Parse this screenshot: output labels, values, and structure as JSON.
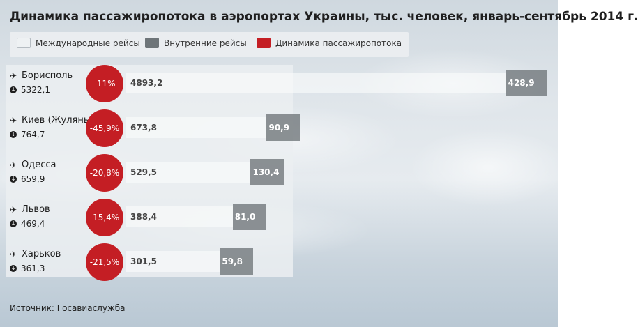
{
  "title": "Динамика пассажиропотока в аэропортах Украины, тыс. человек, январь-сентябрь 2014 г.",
  "legend": {
    "international": "Международные рейсы",
    "domestic": "Внутренние рейсы",
    "dynamics": "Динамика пассажиропотока"
  },
  "colors": {
    "international": "#eef1f3",
    "domestic": "#6e7579",
    "dynamics": "#c41e24"
  },
  "icons": {
    "airport": "plane-icon",
    "total": "arrow-down-circle-icon"
  },
  "source": "Источник: Госавиаслужба",
  "chart_data": {
    "type": "bar",
    "categories": [
      "Борисполь",
      "Киев (Жуляны)",
      "Одесса",
      "Львов",
      "Харьков"
    ],
    "totals": [
      "5322,1",
      "764,7",
      "659,9",
      "469,4",
      "361,3"
    ],
    "dynamics": [
      "-11%",
      "-45,9%",
      "-20,8%",
      "-15,4%",
      "-21,5%"
    ],
    "series": [
      {
        "name": "Международные рейсы",
        "values": [
          4893.2,
          673.8,
          529.5,
          388.4,
          301.5
        ],
        "labels": [
          "4893,2",
          "673,8",
          "529,5",
          "388,4",
          "301,5"
        ]
      },
      {
        "name": "Внутренние рейсы",
        "values": [
          428.9,
          90.9,
          130.4,
          81.0,
          59.8
        ],
        "labels": [
          "428,9",
          "90,9",
          "130,4",
          "81,0",
          "59,8"
        ]
      }
    ]
  }
}
